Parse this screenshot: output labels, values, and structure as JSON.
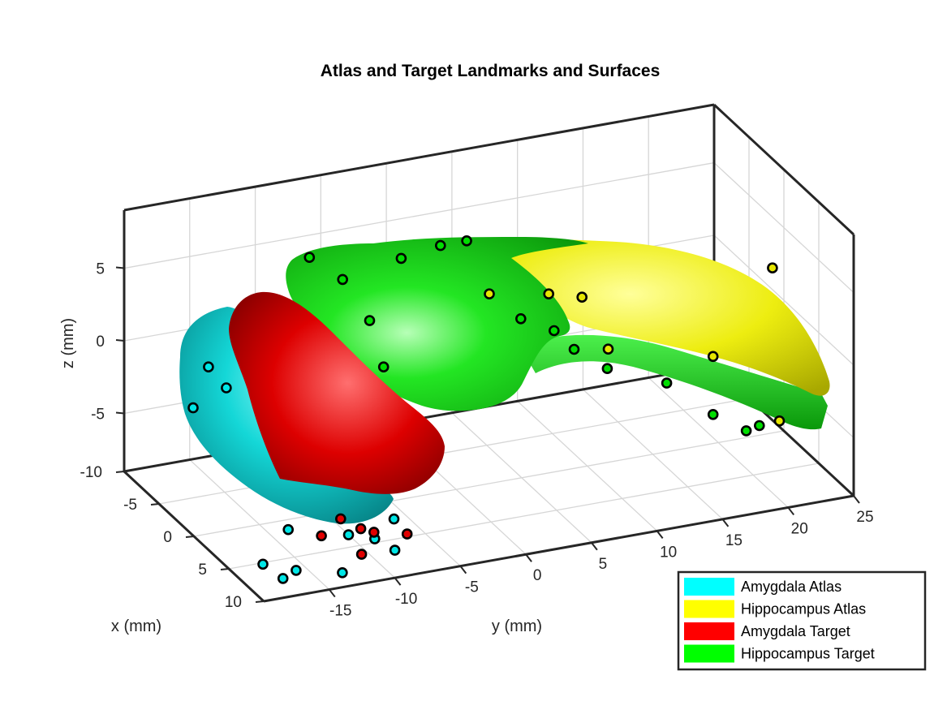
{
  "chart_data": {
    "type": "3d-surface-scatter",
    "title": "Atlas and Target Landmarks and Surfaces",
    "xlabel": "x (mm)",
    "ylabel": "y (mm)",
    "zlabel": "z (mm)",
    "xlim": [
      -10,
      10
    ],
    "ylim": [
      -20,
      25
    ],
    "zlim": [
      -9,
      9
    ],
    "x_ticks": [
      -10,
      -5,
      0,
      5,
      10
    ],
    "y_ticks": [
      -15,
      -10,
      -5,
      0,
      5,
      10,
      15,
      20,
      25
    ],
    "z_ticks": [
      -5,
      0,
      5
    ],
    "grid": true,
    "legend_position": "bottom-right",
    "legend": [
      {
        "name": "Amygdala Atlas",
        "color": "#00ffff"
      },
      {
        "name": "Hippocampus Atlas",
        "color": "#ffff00"
      },
      {
        "name": "Amygdala Target",
        "color": "#ff0000"
      },
      {
        "name": "Hippocampus Target",
        "color": "#00ff00"
      }
    ],
    "series": [
      {
        "name": "Amygdala Atlas",
        "color": "#00e6e6",
        "points": [
          [
            0.2,
            -19,
            2.6
          ],
          [
            -2,
            -19,
            -1.2
          ],
          [
            8,
            -19,
            -7.5
          ],
          [
            9,
            -18,
            -8.2
          ],
          [
            9,
            -17,
            -7.8
          ],
          [
            6,
            -16,
            -6.5
          ],
          [
            -1,
            -17,
            0.3
          ],
          [
            10,
            -14,
            -8
          ],
          [
            9,
            -13,
            -6
          ],
          [
            9,
            -11,
            -6.6
          ],
          [
            10,
            -10,
            -7.1
          ],
          [
            8,
            -9,
            -6
          ]
        ]
      },
      {
        "name": "Hippocampus Atlas",
        "color": "#e6e600",
        "points": [
          [
            1,
            2,
            4.6
          ],
          [
            2,
            6,
            4.4
          ],
          [
            3,
            8,
            4.3
          ],
          [
            4,
            22,
            4.5
          ],
          [
            3,
            18,
            -1.4
          ],
          [
            5,
            22,
            -5.6
          ],
          [
            3,
            10,
            0.4
          ]
        ]
      },
      {
        "name": "Amygdala Target",
        "color": "#e00000",
        "points": [
          [
            7,
            -14,
            -6.8
          ],
          [
            6,
            -12,
            -6.4
          ],
          [
            7,
            -11,
            -6.8
          ],
          [
            7,
            -10,
            -7.2
          ],
          [
            9,
            -12,
            -7.5
          ],
          [
            8,
            -8,
            -7.2
          ]
        ]
      },
      {
        "name": "Hippocampus Target",
        "color": "#00dd00",
        "points": [
          [
            -6,
            -8,
            5.6
          ],
          [
            -5,
            -6,
            4.2
          ],
          [
            -3,
            -5,
            2.1
          ],
          [
            -1,
            -5,
            -0.2
          ],
          [
            -6,
            -1,
            4.4
          ],
          [
            -6,
            2,
            4.8
          ],
          [
            -6,
            4,
            4.8
          ],
          [
            -2,
            6,
            0.9
          ],
          [
            -1,
            8,
            0.2
          ],
          [
            0,
            9,
            -0.8
          ],
          [
            1,
            11,
            -2
          ],
          [
            2,
            15,
            -3.2
          ],
          [
            3,
            18,
            -5.4
          ],
          [
            4,
            21,
            -6.2
          ],
          [
            4,
            20,
            -6.4
          ]
        ]
      }
    ]
  }
}
